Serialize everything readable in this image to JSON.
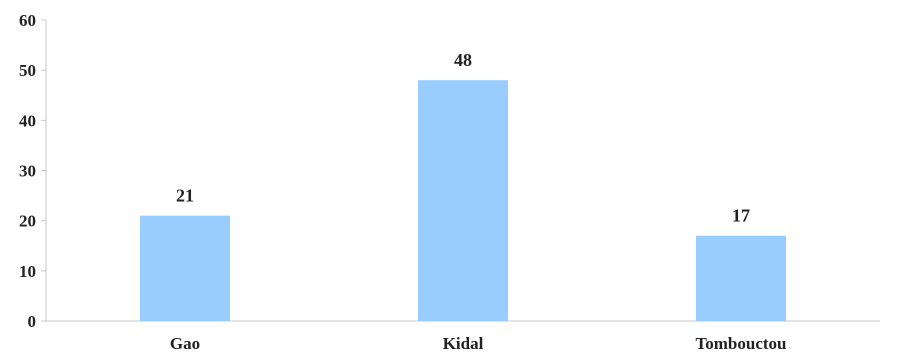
{
  "chart_data": {
    "type": "bar",
    "categories": [
      "Gao",
      "Kidal",
      "Tombouctou"
    ],
    "values": [
      21,
      48,
      17
    ],
    "data_labels": [
      "21",
      "48",
      "17"
    ],
    "title": "",
    "xlabel": "",
    "ylabel": "",
    "ylim": [
      0,
      60
    ],
    "yticks": [
      0,
      10,
      20,
      30,
      40,
      50,
      60
    ],
    "ytick_labels": [
      "0",
      "10",
      "20",
      "30",
      "40",
      "50",
      "60"
    ],
    "grid": false,
    "legend": "none",
    "colors": {
      "bar": "#99ccff",
      "axis": "#c8c8c8",
      "text": "#222222"
    }
  }
}
